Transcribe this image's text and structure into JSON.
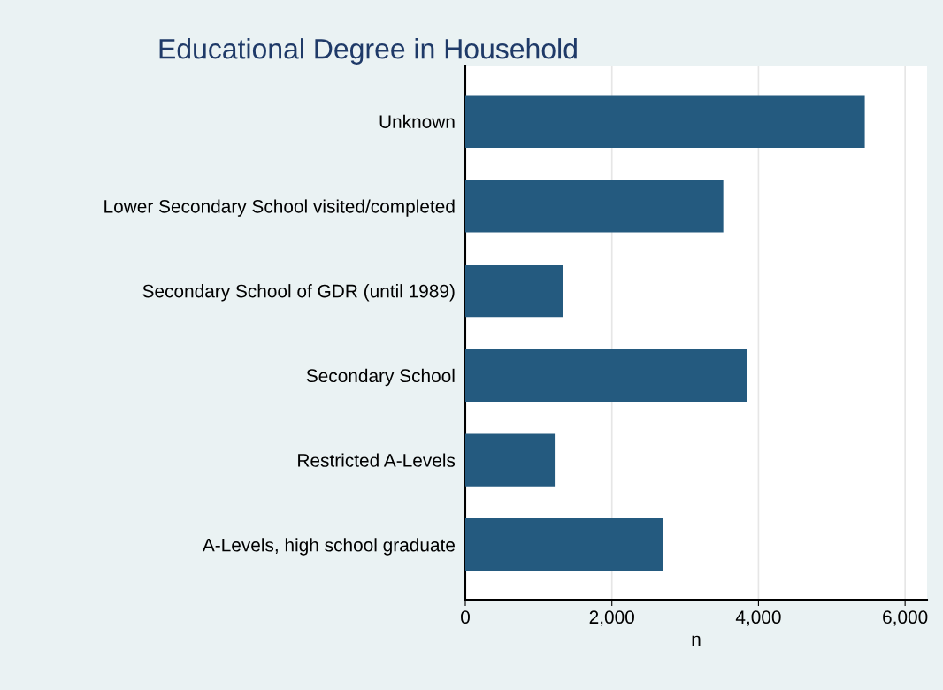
{
  "chart_data": {
    "type": "bar",
    "orientation": "horizontal",
    "title": "Educational Degree in Household",
    "xlabel": "n",
    "categories": [
      "Unknown",
      "Lower Secondary School visited/completed",
      "Secondary School of GDR (until 1989)",
      "Secondary School",
      "Restricted A-Levels",
      "A-Levels, high school graduate"
    ],
    "values": [
      5450,
      3520,
      1330,
      3850,
      1220,
      2700
    ],
    "color": "#245a7f",
    "xlim": [
      0,
      6300
    ],
    "xticks": [
      {
        "value": 0,
        "label": "0"
      },
      {
        "value": 2000,
        "label": "2,000"
      },
      {
        "value": 4000,
        "label": "4,000"
      },
      {
        "value": 6000,
        "label": "6,000"
      }
    ],
    "grid": "x"
  }
}
